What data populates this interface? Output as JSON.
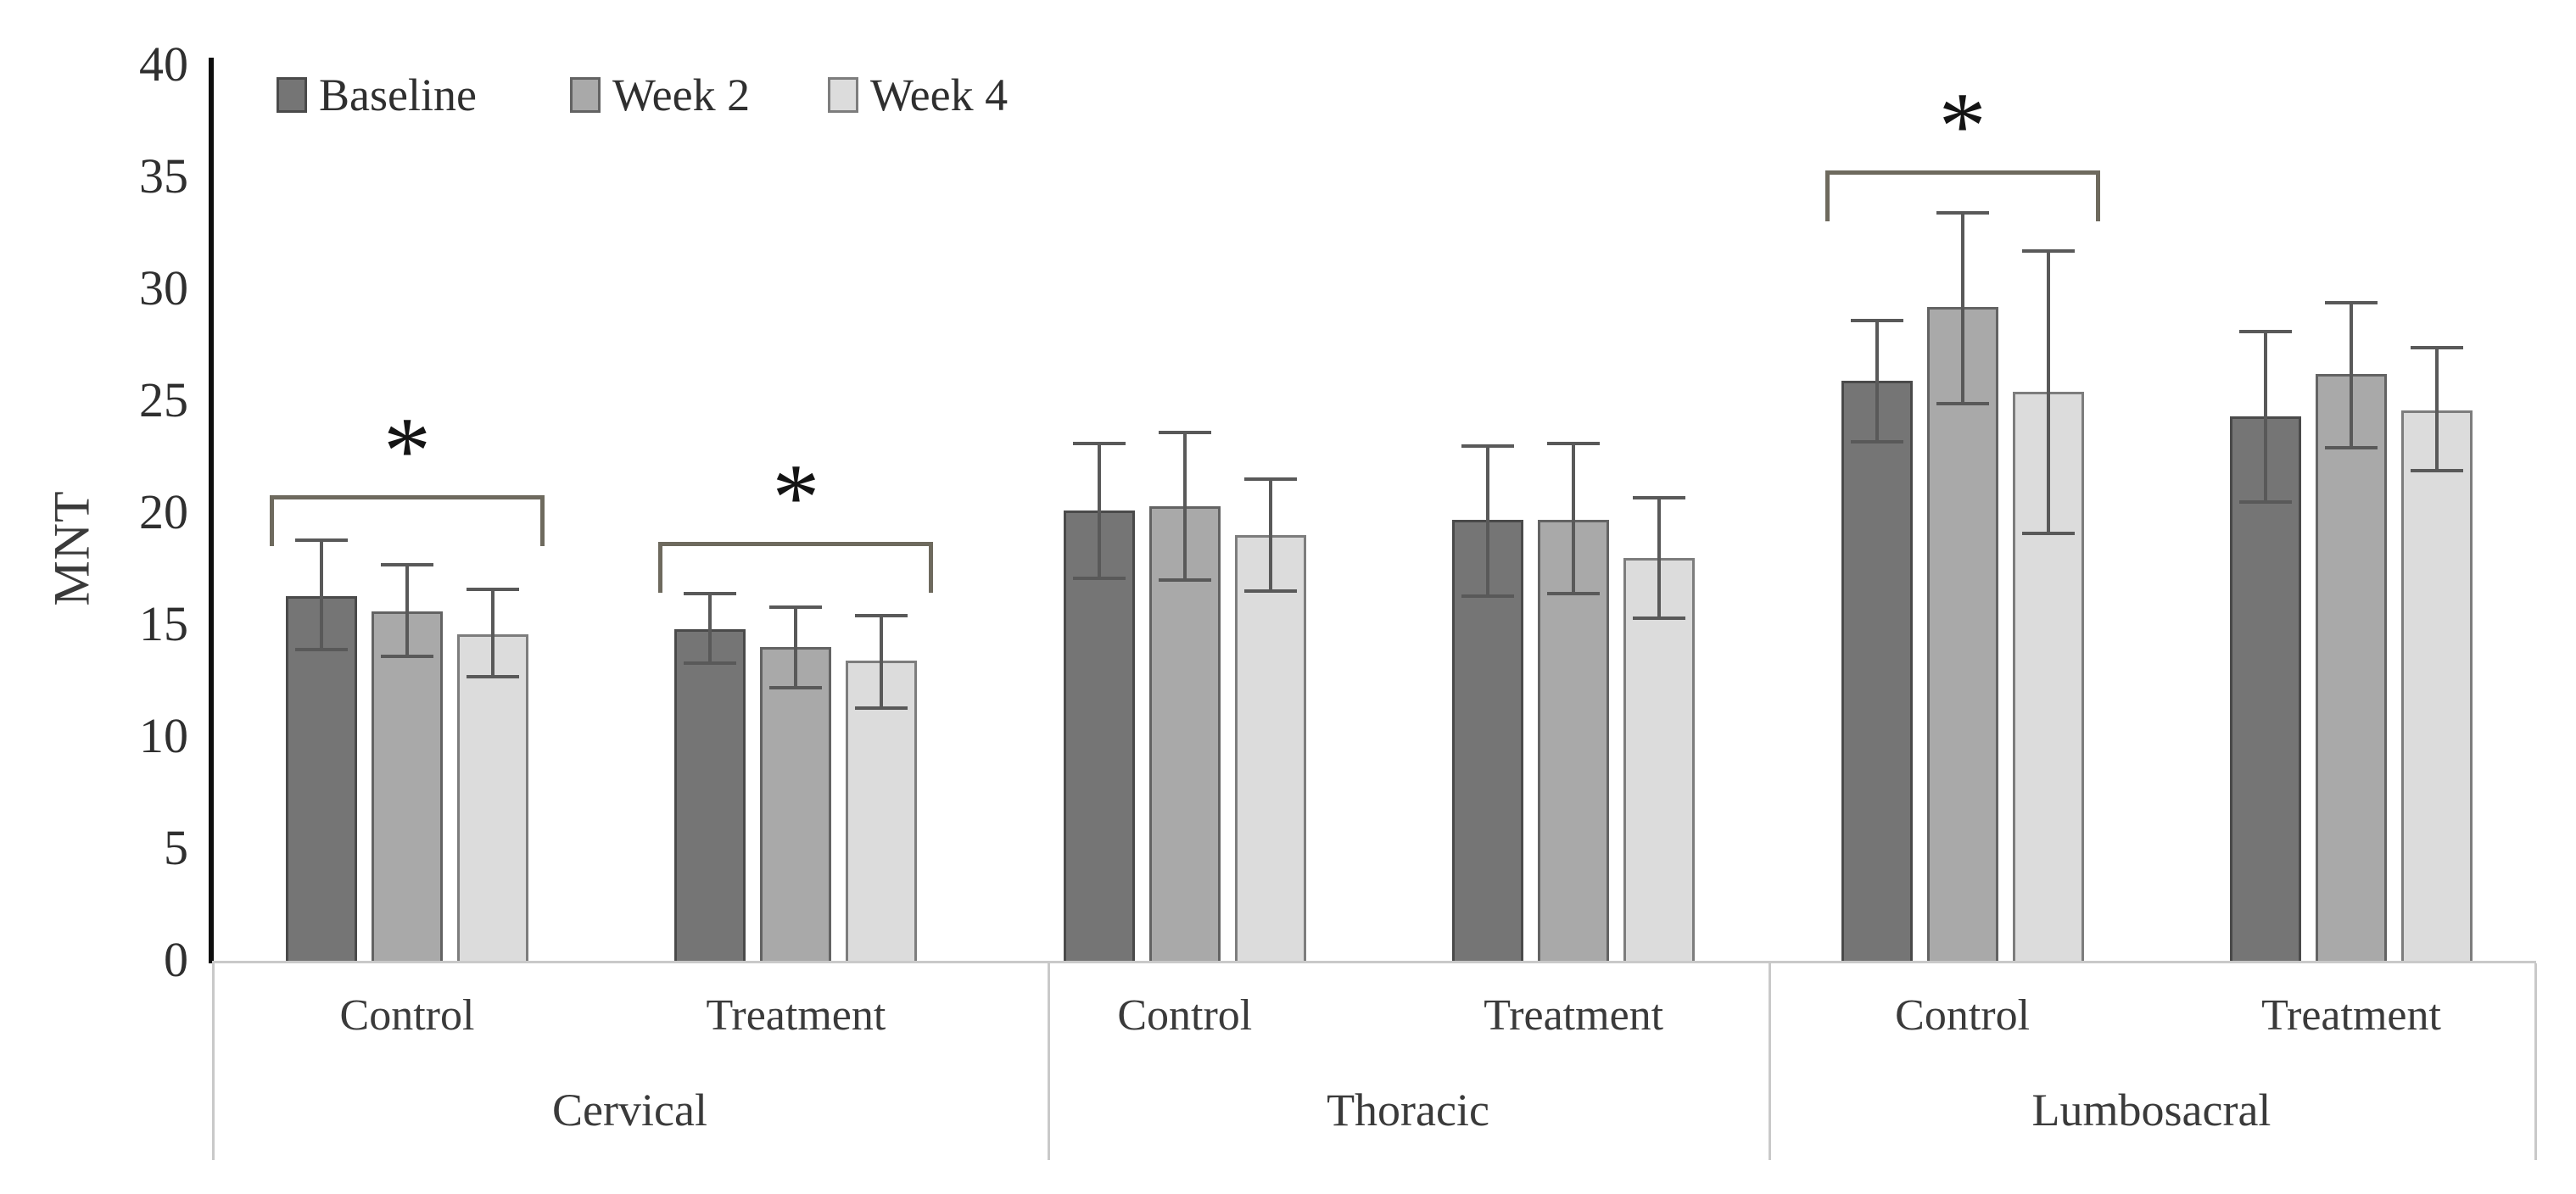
{
  "chart_data": {
    "type": "bar",
    "title": "",
    "ylabel": "MNT",
    "ylim": [
      0,
      40
    ],
    "yticks": [
      0,
      5,
      10,
      15,
      20,
      25,
      30,
      35,
      40
    ],
    "grid": false,
    "legend_position": "top-left",
    "regions": [
      "Cervical",
      "Thoracic",
      "Lumbosacral"
    ],
    "categories": [
      {
        "condition": "Control",
        "region": "Cervical"
      },
      {
        "condition": "Treatment",
        "region": "Cervical"
      },
      {
        "condition": "Control",
        "region": "Thoracic"
      },
      {
        "condition": "Treatment",
        "region": "Thoracic"
      },
      {
        "condition": "Control",
        "region": "Lumbosacral"
      },
      {
        "condition": "Treatment",
        "region": "Lumbosacral"
      }
    ],
    "series": [
      {
        "name": "Baseline",
        "color": "#757575",
        "border_color": "#4a4a4a",
        "values": [
          16.3,
          14.8,
          20.1,
          19.7,
          25.9,
          24.3
        ],
        "err_low": [
          13.9,
          13.3,
          17.1,
          16.3,
          23.2,
          20.5
        ],
        "err_high": [
          18.8,
          16.4,
          23.1,
          23.0,
          28.6,
          28.1
        ]
      },
      {
        "name": "Week 2",
        "color": "#a9a9a9",
        "border_color": "#636363",
        "values": [
          15.6,
          14.0,
          20.3,
          19.7,
          29.2,
          26.2
        ],
        "err_low": [
          13.6,
          12.2,
          17.0,
          16.4,
          24.9,
          22.9
        ],
        "err_high": [
          17.7,
          15.8,
          23.6,
          23.1,
          33.4,
          29.4
        ]
      },
      {
        "name": "Week 4",
        "color": "#dcdcdc",
        "border_color": "#7d7d7d",
        "values": [
          14.6,
          13.4,
          19.0,
          18.0,
          25.4,
          24.6
        ],
        "err_low": [
          12.7,
          11.3,
          16.5,
          15.3,
          19.1,
          21.9
        ],
        "err_high": [
          16.6,
          15.4,
          21.5,
          20.7,
          31.7,
          27.4
        ]
      }
    ],
    "significance": [
      {
        "category_index": 0,
        "label": "*",
        "bracket_y": 20.8
      },
      {
        "category_index": 1,
        "label": "*",
        "bracket_y": 18.7
      },
      {
        "category_index": 4,
        "label": "*",
        "bracket_y": 35.3
      }
    ],
    "error_bar_color": "#595959",
    "bracket_color": "#6e6a5e"
  }
}
